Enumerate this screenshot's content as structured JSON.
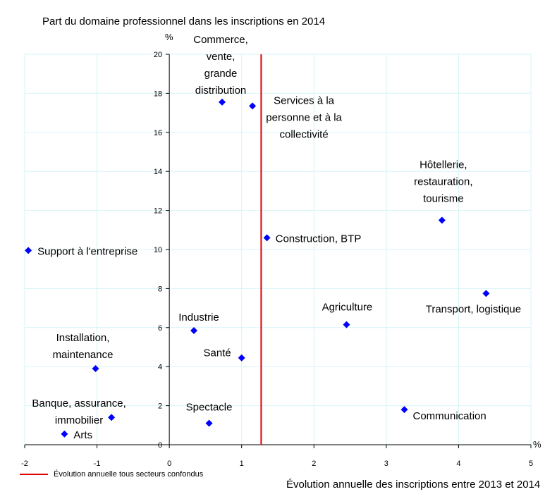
{
  "chart_data": {
    "type": "scatter",
    "title": "Part du domaine professionnel dans les inscriptions en 2014",
    "xlabel": "Évolution annuelle des inscriptions entre 2013 et 2014",
    "ylabel": "%",
    "xunit": "%",
    "xlim": [
      -2,
      5
    ],
    "ylim": [
      0,
      20
    ],
    "xticks": [
      -2,
      -1,
      0,
      1,
      2,
      3,
      4,
      5
    ],
    "yticks": [
      0,
      2,
      4,
      6,
      8,
      10,
      12,
      14,
      16,
      18,
      20
    ],
    "grid": true,
    "marker_color": "#0000ff",
    "reference_line": {
      "x": 1.27,
      "label": "Évolution annuelle tous secteurs confondus",
      "color": "#e00000"
    },
    "points": [
      {
        "x": 0.73,
        "y": 17.55,
        "label": [
          "Commerce,",
          "vente,",
          "grande",
          "distribution"
        ]
      },
      {
        "x": 1.15,
        "y": 17.35,
        "label": [
          "Services à la",
          "personne et à la",
          "collectivité"
        ]
      },
      {
        "x": 3.77,
        "y": 11.5,
        "label": [
          "Hôtellerie,",
          "restauration,",
          "tourisme"
        ]
      },
      {
        "x": 1.35,
        "y": 10.6,
        "label": [
          "Construction, BTP"
        ]
      },
      {
        "x": -1.95,
        "y": 9.95,
        "label": [
          "Support à l'entreprise"
        ]
      },
      {
        "x": 4.38,
        "y": 7.75,
        "label": [
          "Transport, logistique"
        ]
      },
      {
        "x": 2.45,
        "y": 6.15,
        "label": [
          "Agriculture"
        ]
      },
      {
        "x": 0.34,
        "y": 5.85,
        "label": [
          "Industrie"
        ]
      },
      {
        "x": 1.0,
        "y": 4.45,
        "label": [
          "Santé"
        ]
      },
      {
        "x": -1.02,
        "y": 3.9,
        "label": [
          "Installation,",
          "maintenance"
        ]
      },
      {
        "x": 3.25,
        "y": 1.8,
        "label": [
          "Communication"
        ]
      },
      {
        "x": -0.8,
        "y": 1.4,
        "label": [
          "Banque, assurance,",
          "immobilier"
        ]
      },
      {
        "x": 0.55,
        "y": 1.1,
        "label": [
          "Spectacle"
        ]
      },
      {
        "x": -1.45,
        "y": 0.55,
        "label": [
          "Arts"
        ]
      }
    ]
  }
}
